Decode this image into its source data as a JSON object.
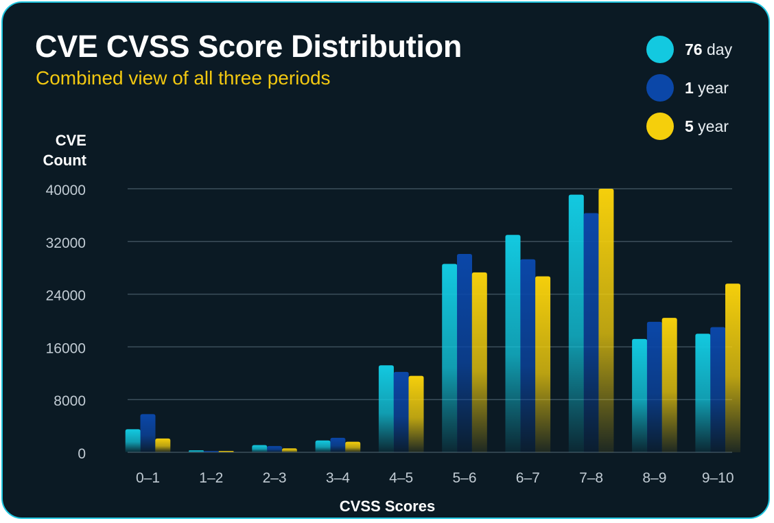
{
  "chart_data": {
    "type": "bar",
    "title": "CVE CVSS Score Distribution",
    "subtitle": "Combined view of all three periods",
    "ylabel_lines": [
      "CVE",
      "Count"
    ],
    "xlabel": "CVSS Scores",
    "ylim": [
      0,
      40000
    ],
    "yticks": [
      "40000",
      "32000",
      "24000",
      "16000",
      "8000",
      "0"
    ],
    "ytick_values": [
      40000,
      32000,
      24000,
      16000,
      8000,
      0
    ],
    "grid": true,
    "legend_position": "top-right",
    "categories": [
      "0–1",
      "1–2",
      "2–3",
      "3–4",
      "4–5",
      "5–6",
      "6–7",
      "7–8",
      "8–9",
      "9–10"
    ],
    "series": [
      {
        "name": "76 day",
        "bold": "76",
        "rest": " day",
        "color": "#13c9e0",
        "values": [
          3500,
          300,
          1100,
          1800,
          13200,
          28600,
          33000,
          39100,
          17200,
          18000
        ]
      },
      {
        "name": "1 year",
        "bold": "1",
        "rest": " year",
        "color": "#0b47a8",
        "values": [
          5800,
          150,
          950,
          2200,
          12200,
          30100,
          29300,
          36300,
          19800,
          19000
        ]
      },
      {
        "name": "5 year",
        "bold": "5",
        "rest": " year",
        "color": "#f5cf0c",
        "values": [
          2100,
          100,
          600,
          1600,
          11600,
          27300,
          26700,
          40000,
          20400,
          25600
        ]
      }
    ]
  }
}
